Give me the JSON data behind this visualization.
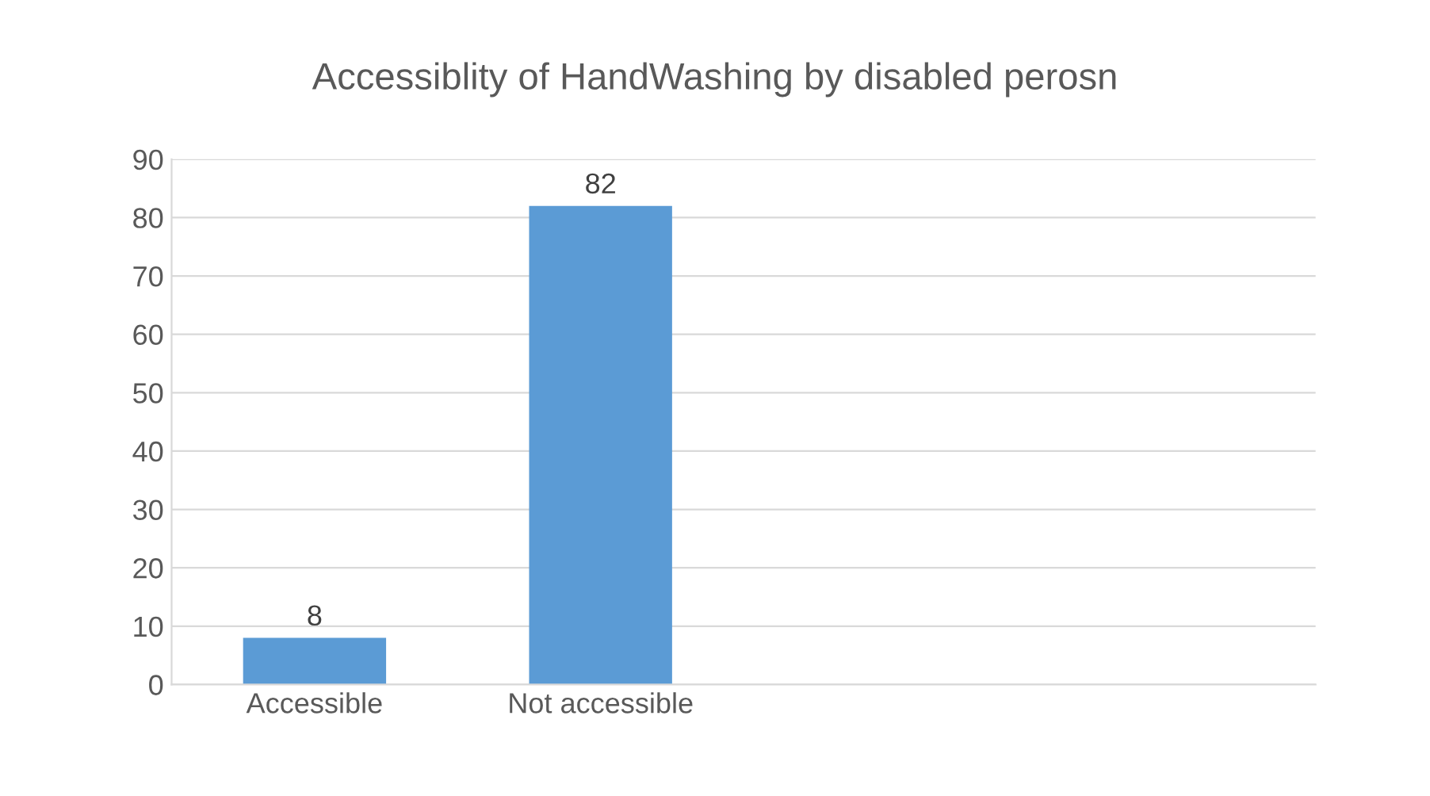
{
  "chart_data": {
    "type": "bar",
    "title": "Accessiblity of HandWashing by disabled perosn",
    "categories": [
      "Accessible",
      "Not accessible",
      null,
      null
    ],
    "values": [
      8,
      82,
      null,
      null
    ],
    "color": "#5b9bd5",
    "ylim": [
      0,
      90
    ],
    "yticks": [
      0,
      10,
      20,
      30,
      40,
      50,
      60,
      70,
      80,
      90
    ],
    "grid": "y",
    "data_labels": true
  }
}
